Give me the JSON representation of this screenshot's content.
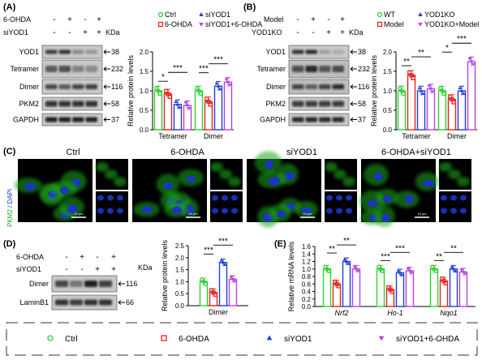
{
  "colors": {
    "ctrl": "#2fd12f",
    "ohda": "#e8231b",
    "siyod1": "#1f3fd8",
    "combo": "#b542e0",
    "bg": "#ffffff",
    "axis": "#000000",
    "micro_green": "#1aa81a",
    "micro_blue": "#1c34c8"
  },
  "legend_icons": {
    "ctrl": "circle",
    "ohda": "square",
    "siyod1": "triangle",
    "combo": "inverted-triangle"
  },
  "panelA": {
    "label": "(A)",
    "row_labels": [
      "6-OHDA",
      "siYOD1"
    ],
    "signs": [
      [
        "-",
        "+",
        "-",
        "+"
      ],
      [
        "-",
        "-",
        "+",
        "+"
      ]
    ],
    "kda": "KDa",
    "blots": [
      {
        "name": "YOD1",
        "kda": "38"
      },
      {
        "name": "Tetramer",
        "kda": "232"
      },
      {
        "name": "Dimer",
        "kda": "116"
      },
      {
        "name": "PKM2",
        "kda": "58"
      },
      {
        "name": "GAPDH",
        "kda": "37"
      }
    ],
    "legend": [
      "Ctrl",
      "siYOD1",
      "6-OHDA",
      "siYOD1+6-OHDA"
    ],
    "chart_data": {
      "type": "bar",
      "ylabel": "Relative protein levels",
      "ylim": [
        0,
        2.0
      ],
      "yticks": [
        "0.0",
        "0.5",
        "1.0",
        "1.5",
        "2.0"
      ],
      "categories": [
        "Tetramer",
        "Dimer"
      ],
      "series": [
        {
          "name": "Ctrl",
          "values": [
            1.0,
            1.0
          ]
        },
        {
          "name": "6-OHDA",
          "values": [
            0.92,
            0.72
          ]
        },
        {
          "name": "siYOD1",
          "values": [
            0.65,
            1.12
          ]
        },
        {
          "name": "siYOD1+6-OHDA",
          "values": [
            0.62,
            1.22
          ]
        }
      ],
      "sig": [
        {
          "label": "*",
          "cat": 0,
          "a": 0,
          "b": 1
        },
        {
          "label": "***",
          "cat": 0,
          "a": 1,
          "b": 3
        },
        {
          "label": "***",
          "cat": 1,
          "a": 0,
          "b": 1
        },
        {
          "label": "***",
          "cat": 1,
          "a": 1,
          "b": 3
        }
      ]
    }
  },
  "panelB": {
    "label": "(B)",
    "row_labels": [
      "Model",
      "YOD1KO"
    ],
    "signs": [
      [
        "-",
        "+",
        "-",
        "+"
      ],
      [
        "-",
        "-",
        "+",
        "+"
      ]
    ],
    "kda": "KDa",
    "blots": [
      {
        "name": "YOD1",
        "kda": "38"
      },
      {
        "name": "Tetramer",
        "kda": "232"
      },
      {
        "name": "Dimer",
        "kda": "116"
      },
      {
        "name": "PKM2",
        "kda": "58"
      },
      {
        "name": "GAPDH",
        "kda": "37"
      }
    ],
    "legend": [
      "WT",
      "YOD1KO",
      "Model",
      "YOD1KO+Model"
    ],
    "chart_data": {
      "type": "bar",
      "ylabel": "Relative protein levels",
      "ylim": [
        0,
        2.0
      ],
      "yticks": [
        "0.0",
        "0.5",
        "1.0",
        "1.5",
        "2.0"
      ],
      "categories": [
        "Tetramer",
        "Dimer"
      ],
      "series": [
        {
          "name": "WT",
          "values": [
            1.0,
            1.0
          ]
        },
        {
          "name": "Model",
          "values": [
            1.4,
            0.78
          ]
        },
        {
          "name": "YOD1KO",
          "values": [
            1.0,
            1.0
          ]
        },
        {
          "name": "YOD1KO+Model",
          "values": [
            1.05,
            1.75
          ]
        }
      ],
      "sig": [
        {
          "label": "**",
          "cat": 0,
          "a": 0,
          "b": 1
        },
        {
          "label": "**",
          "cat": 0,
          "a": 1,
          "b": 3
        },
        {
          "label": "*",
          "cat": 1,
          "a": 0,
          "b": 1
        },
        {
          "label": "***",
          "cat": 1,
          "a": 1,
          "b": 3
        }
      ]
    }
  },
  "panelC": {
    "label": "(C)",
    "side_label": "PKM2 / DAPI",
    "side_label_a": "PKM2",
    "side_label_b": "DAPI",
    "groups": [
      "Ctrl",
      "6-OHDA",
      "siYOD1",
      "6-OHDA+siYOD1"
    ],
    "scalebar": "10 μm"
  },
  "panelD": {
    "label": "(D)",
    "row_labels": [
      "6-OHDA",
      "siYOD1"
    ],
    "signs": [
      [
        "-",
        "+",
        "-",
        "+"
      ],
      [
        "-",
        "-",
        "+",
        "+"
      ]
    ],
    "kda": "KDa",
    "blots": [
      {
        "name": "Dimer",
        "kda": "116"
      },
      {
        "name": "LaminB1",
        "kda": "66"
      }
    ],
    "chart_data": {
      "type": "bar",
      "ylabel": "Relative protein levels",
      "ylim": [
        0,
        2.5
      ],
      "yticks": [
        "0.0",
        "0.5",
        "1.0",
        "1.5",
        "2.0",
        "2.5"
      ],
      "categories": [
        "Dimer"
      ],
      "series": [
        {
          "name": "Ctrl",
          "values": [
            1.0
          ]
        },
        {
          "name": "6-OHDA",
          "values": [
            0.55
          ]
        },
        {
          "name": "siYOD1",
          "values": [
            1.8
          ]
        },
        {
          "name": "siYOD1+6-OHDA",
          "values": [
            1.1
          ]
        }
      ],
      "sig": [
        {
          "label": "***",
          "cat": 0,
          "a": 0,
          "b": 1
        },
        {
          "label": "***",
          "cat": 0,
          "a": 1,
          "b": 3
        }
      ]
    }
  },
  "panelE": {
    "label": "(E)",
    "chart_data": {
      "type": "bar",
      "ylabel": "Relative mRNA levels",
      "ylim": [
        0,
        1.6
      ],
      "yticks": [
        "0.0",
        "0.2",
        "0.4",
        "0.6",
        "0.8",
        "1.0",
        "1.2",
        "1.4",
        "1.6"
      ],
      "categories": [
        "Nrf2",
        "Ho-1",
        "Nqo1"
      ],
      "series": [
        {
          "name": "Ctrl",
          "values": [
            1.0,
            1.0,
            1.0
          ]
        },
        {
          "name": "6-OHDA",
          "values": [
            0.6,
            0.45,
            0.68
          ]
        },
        {
          "name": "siYOD1",
          "values": [
            1.2,
            0.9,
            1.0
          ]
        },
        {
          "name": "siYOD1+6-OHDA",
          "values": [
            1.0,
            0.95,
            0.92
          ]
        }
      ],
      "sig": [
        {
          "label": "**",
          "cat": 0,
          "a": 0,
          "b": 1
        },
        {
          "label": "**",
          "cat": 0,
          "a": 1,
          "b": 3
        },
        {
          "label": "***",
          "cat": 1,
          "a": 0,
          "b": 1
        },
        {
          "label": "***",
          "cat": 1,
          "a": 1,
          "b": 3
        },
        {
          "label": "**",
          "cat": 2,
          "a": 0,
          "b": 1
        },
        {
          "label": "**",
          "cat": 2,
          "a": 1,
          "b": 3
        }
      ]
    }
  },
  "bottom_legend": [
    "Ctrl",
    "6-OHDA",
    "siYOD1",
    "siYOD1+6-OHDA"
  ]
}
